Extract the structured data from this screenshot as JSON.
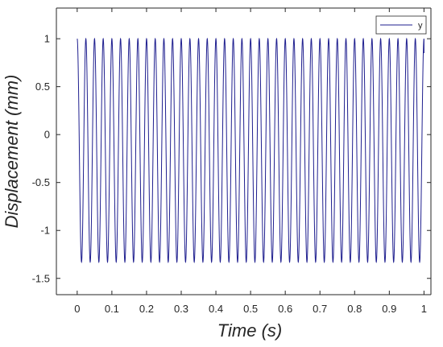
{
  "chart_data": {
    "type": "line",
    "title": "",
    "xlabel": "Time (s)",
    "ylabel": "Displacement (mm)",
    "xlim": [
      -0.06,
      1.02
    ],
    "ylim": [
      -1.67,
      1.32
    ],
    "x_ticks": [
      "0",
      "0.1",
      "0.2",
      "0.3",
      "0.4",
      "0.5",
      "0.6",
      "0.7",
      "0.8",
      "0.9",
      "1"
    ],
    "x_tick_values": [
      0,
      0.1,
      0.2,
      0.3,
      0.4,
      0.5,
      0.6,
      0.7,
      0.8,
      0.9,
      1
    ],
    "y_ticks": [
      "1",
      "0.5",
      "0",
      "-0.5",
      "-1",
      "-1.5"
    ],
    "y_tick_values": [
      1,
      0.5,
      0,
      -0.5,
      -1,
      -1.5
    ],
    "grid": false,
    "legend_position": "top-right",
    "series": [
      {
        "name": "y",
        "color": "#1f1f8f",
        "waveform": "periodic oscillation",
        "frequency_hz": 40,
        "max": 1,
        "min": -1.33,
        "x_start": 0,
        "x_end": 1,
        "start_value": 1,
        "end_value": 0.85
      }
    ]
  },
  "colors": {
    "axis": "#262626",
    "line": "#1f1f8f",
    "background": "#ffffff"
  }
}
